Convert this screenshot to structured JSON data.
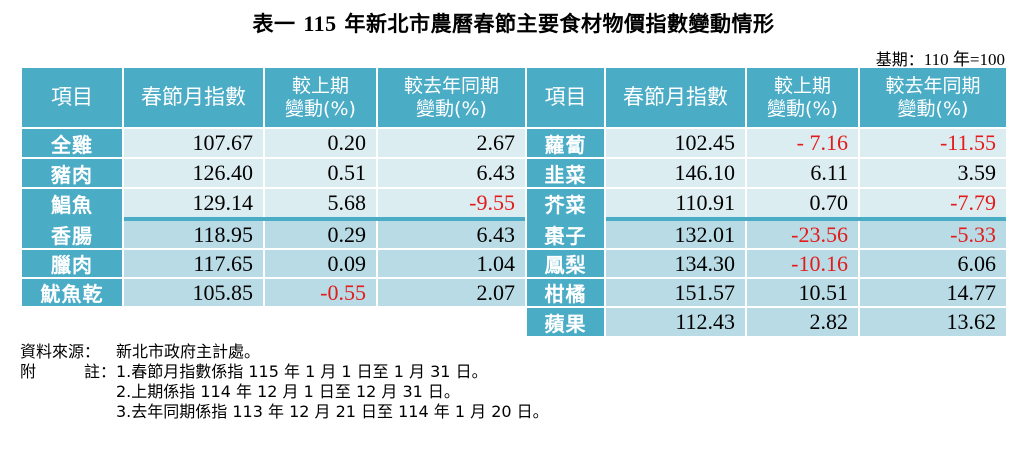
{
  "title": {
    "prefix": "表一 ",
    "year": "115",
    "text": " 年新北市農曆春節主要食材物價指數變動情形"
  },
  "base_period": {
    "label": "基期：",
    "value": "110 年=100"
  },
  "headers": {
    "item": "項目",
    "index": "春節月指數",
    "prev_line1": "較上期",
    "prev_line2": "變動(%)",
    "yoy_line1": "較去年同期",
    "yoy_line2": "變動(%)"
  },
  "left_rows": [
    {
      "item": "全雞",
      "index": "107.67",
      "prev": "0.20",
      "yoy": "2.67"
    },
    {
      "item": "豬肉",
      "index": "126.40",
      "prev": "0.51",
      "yoy": "6.43"
    },
    {
      "item": "鯧魚",
      "index": "129.14",
      "prev": "5.68",
      "yoy": "-9.55"
    },
    {
      "item": "香腸",
      "index": "118.95",
      "prev": "0.29",
      "yoy": "6.43"
    },
    {
      "item": "臘肉",
      "index": "117.65",
      "prev": "0.09",
      "yoy": "1.04"
    },
    {
      "item": "魷魚乾",
      "index": "105.85",
      "prev": "-0.55",
      "yoy": "2.07"
    }
  ],
  "right_rows": [
    {
      "item": "蘿蔔",
      "index": "102.45",
      "prev": "- 7.16",
      "yoy": "-11.55"
    },
    {
      "item": "韭菜",
      "index": "146.10",
      "prev": "6.11",
      "yoy": "3.59"
    },
    {
      "item": "芥菜",
      "index": "110.91",
      "prev": "0.70",
      "yoy": "-7.79"
    },
    {
      "item": "棗子",
      "index": "132.01",
      "prev": "-23.56",
      "yoy": "-5.33"
    },
    {
      "item": "鳳梨",
      "index": "134.30",
      "prev": "-10.16",
      "yoy": "6.06"
    },
    {
      "item": "柑橘",
      "index": "151.57",
      "prev": "10.51",
      "yoy": "14.77"
    },
    {
      "item": "蘋果",
      "index": "112.43",
      "prev": "2.82",
      "yoy": "13.62"
    }
  ],
  "notes": {
    "source_label": "資料來源：",
    "source_value": "新北市政府主計處。",
    "note_label_a": "附",
    "note_label_b": "註：",
    "note_1": "1.春節月指數係指 115 年 1 月 1 日至 1 月 31 日。",
    "note_2": "2.上期係指 114 年 12 月 1 日至 12 月 31 日。",
    "note_3": "3.去年同期係指 113 年 12 月 21 日至 114 年 1 月 20 日。"
  },
  "colors": {
    "header_bg": "#4bacc6",
    "row_light": "#dcedf2",
    "row_dark": "#b8dbe5",
    "negative_text": "#e31b1b"
  }
}
